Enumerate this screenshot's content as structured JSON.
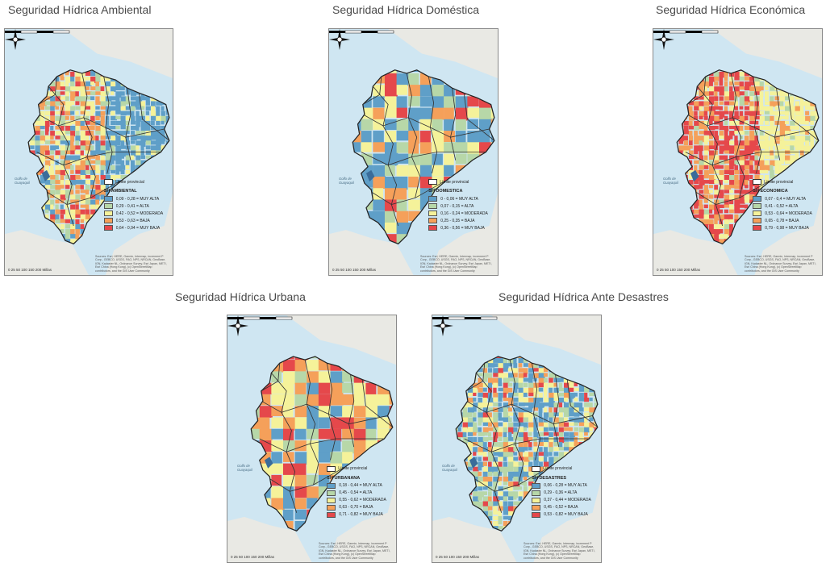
{
  "palette": {
    "muy_alta": "#5f9fc8",
    "alta": "#b7d7a8",
    "moderada": "#f5f29a",
    "baja": "#f5a05a",
    "muy_baja": "#e5484b",
    "sea": "#cfe6f2",
    "land": "#e9e9e4"
  },
  "common": {
    "legend_boundary": "Límite provincial",
    "scale_units": "0  25 50       100     150     200",
    "scale_unit_label": "Millas",
    "sea_label": "Golfo de Guayaquil",
    "credits": "Sources: Esri, HERE, Garmin, Intermap, increment P Corp., GEBCO, USGS, FAO, NPS, NRCAN, GeoBase, IGN, Kadaster NL, Ordnance Survey, Esri Japan, METI, Esri China (Hong Kong), (c) OpenStreetMap contributors, and the GIS User Community"
  },
  "maps": [
    {
      "title": "Seguridad Hídrica Ambiental",
      "legend_title": "SH AMBIENTAL",
      "classes": [
        "0,09 - 0,28 = MUY ALTA",
        "0,29 - 0,41 = ALTA",
        "0,42 - 0,52 = MODERADA",
        "0,53 - 0,63 = BAJA",
        "0,64 - 0,94 = MUY BAJA"
      ]
    },
    {
      "title": "Seguridad Hídrica Doméstica",
      "legend_title": "SH DOMESTICA",
      "classes": [
        "0 - 0,06 = MUY ALTA",
        "0,07 - 0,15 = ALTA",
        "0,16 - 0,24 = MODERADA",
        "0,25 - 0,35 = BAJA",
        "0,36 - 0,56 = MUY BAJA"
      ]
    },
    {
      "title": "Seguridad Hídrica Económica",
      "legend_title": "SH ECONOMICA",
      "classes": [
        "0,07 - 0,4 = MUY ALTA",
        "0,41 - 0,52 = ALTA",
        "0,53 - 0,64 = MODERADA",
        "0,65 - 0,78 = BAJA",
        "0,79 - 0,98 = MUY BAJA"
      ]
    },
    {
      "title": "Seguridad Hídrica Urbana",
      "legend_title": "SH URBANANA",
      "classes": [
        "0,18 - 0,44 = MUY ALTA",
        "0,45 - 0,54 = ALTA",
        "0,55 - 0,62 = MODERADA",
        "0,63 - 0,70 = BAJA",
        "0,71 - 0,82 = MUY BAJA"
      ]
    },
    {
      "title": "Seguridad Hídrica Ante Desastres",
      "legend_title": "SH DESASTRES",
      "classes": [
        "0,06 - 0,28 = MUY ALTA",
        "0,29 - 0,36 = ALTA",
        "0,37 - 0,44 = MODERADA",
        "0,45 - 0,52 = BAJA",
        "0,53 - 0,82 = MUY BAJA"
      ]
    }
  ]
}
